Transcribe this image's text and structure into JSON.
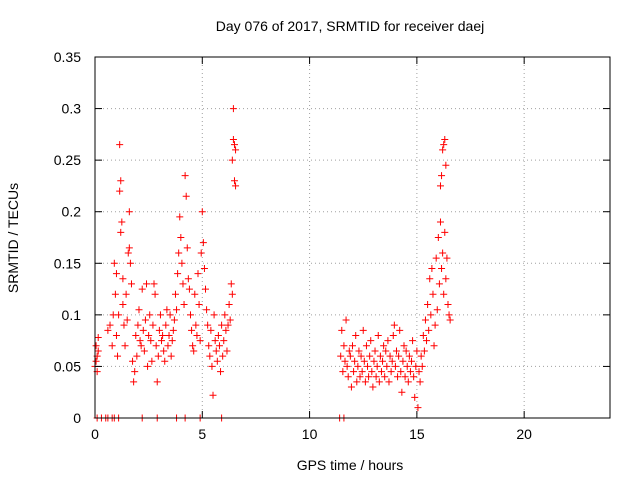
{
  "chart_data": {
    "type": "scatter",
    "title": "Day 076 of 2017, SRMTID for receiver daej",
    "xlabel": "GPS time / hours",
    "ylabel": "SRMTID / TECUs",
    "xlim": [
      0,
      24
    ],
    "ylim": [
      0,
      0.35
    ],
    "xticks": [
      0,
      5,
      10,
      15,
      20
    ],
    "xtick_labels": [
      "0",
      "5",
      "10",
      "15",
      "20"
    ],
    "yticks": [
      0,
      0.05,
      0.1,
      0.15,
      0.2,
      0.25,
      0.3,
      0.35
    ],
    "ytick_labels": [
      "0",
      "0.05",
      "0.1",
      "0.15",
      "0.2",
      "0.25",
      "0.3",
      "0.35"
    ],
    "grid": true,
    "marker": "+",
    "color": "#ff0000",
    "series": [
      {
        "name": "SRMTID",
        "points": [
          [
            0.0,
            0.05
          ],
          [
            0.05,
            0.07
          ],
          [
            0.1,
            0.045
          ],
          [
            0.1,
            0.06
          ],
          [
            0.15,
            0.065
          ],
          [
            0.05,
            0.055
          ],
          [
            0.15,
            0.078
          ],
          [
            0.6,
            0.085
          ],
          [
            0.7,
            0.09
          ],
          [
            0.8,
            0.07
          ],
          [
            0.85,
            0.1
          ],
          [
            0.9,
            0.15
          ],
          [
            0.95,
            0.12
          ],
          [
            1.0,
            0.08
          ],
          [
            1.0,
            0.14
          ],
          [
            1.05,
            0.06
          ],
          [
            1.1,
            0.1
          ],
          [
            1.15,
            0.265
          ],
          [
            1.15,
            0.22
          ],
          [
            1.2,
            0.23
          ],
          [
            1.2,
            0.18
          ],
          [
            1.25,
            0.19
          ],
          [
            1.3,
            0.135
          ],
          [
            1.3,
            0.11
          ],
          [
            1.35,
            0.09
          ],
          [
            1.4,
            0.07
          ],
          [
            1.45,
            0.12
          ],
          [
            1.5,
            0.095
          ],
          [
            1.55,
            0.16
          ],
          [
            1.6,
            0.2
          ],
          [
            1.6,
            0.165
          ],
          [
            1.65,
            0.15
          ],
          [
            1.7,
            0.13
          ],
          [
            1.75,
            0.055
          ],
          [
            1.8,
            0.035
          ],
          [
            1.85,
            0.045
          ],
          [
            1.9,
            0.08
          ],
          [
            1.95,
            0.06
          ],
          [
            2.0,
            0.09
          ],
          [
            2.05,
            0.105
          ],
          [
            2.1,
            0.075
          ],
          [
            2.15,
            0.07
          ],
          [
            2.2,
            0.125
          ],
          [
            2.25,
            0.085
          ],
          [
            2.3,
            0.065
          ],
          [
            2.35,
            0.095
          ],
          [
            2.4,
            0.13
          ],
          [
            2.45,
            0.05
          ],
          [
            2.5,
            0.08
          ],
          [
            2.55,
            0.1
          ],
          [
            2.6,
            0.075
          ],
          [
            2.65,
            0.055
          ],
          [
            2.7,
            0.09
          ],
          [
            2.75,
            0.13
          ],
          [
            2.8,
            0.12
          ],
          [
            2.85,
            0.07
          ],
          [
            2.9,
            0.035
          ],
          [
            2.95,
            0.06
          ],
          [
            3.0,
            0.085
          ],
          [
            3.05,
            0.1
          ],
          [
            3.1,
            0.075
          ],
          [
            3.15,
            0.08
          ],
          [
            3.2,
            0.065
          ],
          [
            3.25,
            0.055
          ],
          [
            3.3,
            0.09
          ],
          [
            3.35,
            0.105
          ],
          [
            3.4,
            0.07
          ],
          [
            3.45,
            0.08
          ],
          [
            3.5,
            0.1
          ],
          [
            3.55,
            0.06
          ],
          [
            3.6,
            0.075
          ],
          [
            3.65,
            0.085
          ],
          [
            3.7,
            0.095
          ],
          [
            3.75,
            0.12
          ],
          [
            3.8,
            0.105
          ],
          [
            3.85,
            0.14
          ],
          [
            3.9,
            0.16
          ],
          [
            3.95,
            0.195
          ],
          [
            4.0,
            0.175
          ],
          [
            4.05,
            0.15
          ],
          [
            4.1,
            0.13
          ],
          [
            4.15,
            0.11
          ],
          [
            4.2,
            0.235
          ],
          [
            4.25,
            0.215
          ],
          [
            4.3,
            0.165
          ],
          [
            4.35,
            0.135
          ],
          [
            4.4,
            0.125
          ],
          [
            4.45,
            0.1
          ],
          [
            4.5,
            0.085
          ],
          [
            4.55,
            0.07
          ],
          [
            4.6,
            0.065
          ],
          [
            4.65,
            0.12
          ],
          [
            4.7,
            0.09
          ],
          [
            4.75,
            0.08
          ],
          [
            4.8,
            0.14
          ],
          [
            4.85,
            0.11
          ],
          [
            4.9,
            0.075
          ],
          [
            4.95,
            0.16
          ],
          [
            5.0,
            0.2
          ],
          [
            5.05,
            0.17
          ],
          [
            5.1,
            0.145
          ],
          [
            5.15,
            0.125
          ],
          [
            5.2,
            0.105
          ],
          [
            5.25,
            0.09
          ],
          [
            5.3,
            0.07
          ],
          [
            5.35,
            0.06
          ],
          [
            5.4,
            0.085
          ],
          [
            5.45,
            0.05
          ],
          [
            5.5,
            0.022
          ],
          [
            5.55,
            0.1
          ],
          [
            5.6,
            0.075
          ],
          [
            5.65,
            0.065
          ],
          [
            5.7,
            0.055
          ],
          [
            5.75,
            0.08
          ],
          [
            5.8,
            0.07
          ],
          [
            5.85,
            0.045
          ],
          [
            5.9,
            0.09
          ],
          [
            5.95,
            0.06
          ],
          [
            6.0,
            0.075
          ],
          [
            6.05,
            0.1
          ],
          [
            6.1,
            0.085
          ],
          [
            6.15,
            0.065
          ],
          [
            6.2,
            0.09
          ],
          [
            6.25,
            0.11
          ],
          [
            6.3,
            0.095
          ],
          [
            6.35,
            0.13
          ],
          [
            6.4,
            0.12
          ],
          [
            6.4,
            0.25
          ],
          [
            6.45,
            0.3
          ],
          [
            6.45,
            0.27
          ],
          [
            6.5,
            0.265
          ],
          [
            6.5,
            0.23
          ],
          [
            6.55,
            0.225
          ],
          [
            6.55,
            0.26
          ],
          [
            11.45,
            0.06
          ],
          [
            11.5,
            0.085
          ],
          [
            11.55,
            0.045
          ],
          [
            11.6,
            0.07
          ],
          [
            11.65,
            0.055
          ],
          [
            11.7,
            0.095
          ],
          [
            11.75,
            0.05
          ],
          [
            11.8,
            0.04
          ],
          [
            11.85,
            0.065
          ],
          [
            11.9,
            0.06
          ],
          [
            11.95,
            0.03
          ],
          [
            12.0,
            0.07
          ],
          [
            12.05,
            0.045
          ],
          [
            12.1,
            0.055
          ],
          [
            12.15,
            0.08
          ],
          [
            12.2,
            0.035
          ],
          [
            12.25,
            0.05
          ],
          [
            12.3,
            0.065
          ],
          [
            12.35,
            0.04
          ],
          [
            12.4,
            0.06
          ],
          [
            12.45,
            0.045
          ],
          [
            12.5,
            0.085
          ],
          [
            12.55,
            0.055
          ],
          [
            12.6,
            0.035
          ],
          [
            12.65,
            0.07
          ],
          [
            12.7,
            0.05
          ],
          [
            12.75,
            0.04
          ],
          [
            12.8,
            0.06
          ],
          [
            12.85,
            0.075
          ],
          [
            12.9,
            0.045
          ],
          [
            12.95,
            0.03
          ],
          [
            13.0,
            0.055
          ],
          [
            13.05,
            0.065
          ],
          [
            13.1,
            0.04
          ],
          [
            13.15,
            0.05
          ],
          [
            13.2,
            0.08
          ],
          [
            13.25,
            0.035
          ],
          [
            13.3,
            0.06
          ],
          [
            13.35,
            0.045
          ],
          [
            13.4,
            0.055
          ],
          [
            13.45,
            0.07
          ],
          [
            13.5,
            0.04
          ],
          [
            13.55,
            0.065
          ],
          [
            13.6,
            0.05
          ],
          [
            13.65,
            0.075
          ],
          [
            13.7,
            0.035
          ],
          [
            13.75,
            0.06
          ],
          [
            13.8,
            0.045
          ],
          [
            13.85,
            0.055
          ],
          [
            13.9,
            0.08
          ],
          [
            13.95,
            0.09
          ],
          [
            14.0,
            0.05
          ],
          [
            14.05,
            0.065
          ],
          [
            14.1,
            0.04
          ],
          [
            14.15,
            0.06
          ],
          [
            14.2,
            0.085
          ],
          [
            14.25,
            0.045
          ],
          [
            14.3,
            0.025
          ],
          [
            14.35,
            0.055
          ],
          [
            14.4,
            0.07
          ],
          [
            14.45,
            0.04
          ],
          [
            14.5,
            0.065
          ],
          [
            14.55,
            0.05
          ],
          [
            14.6,
            0.035
          ],
          [
            14.65,
            0.06
          ],
          [
            14.7,
            0.045
          ],
          [
            14.75,
            0.055
          ],
          [
            14.8,
            0.075
          ],
          [
            14.85,
            0.04
          ],
          [
            14.9,
            0.02
          ],
          [
            14.95,
            0.05
          ],
          [
            15.0,
            0.065
          ],
          [
            15.05,
            0.01
          ],
          [
            15.1,
            0.045
          ],
          [
            15.15,
            0.035
          ],
          [
            15.2,
            0.06
          ],
          [
            15.25,
            0.05
          ],
          [
            15.3,
            0.08
          ],
          [
            15.35,
            0.065
          ],
          [
            15.4,
            0.095
          ],
          [
            15.45,
            0.075
          ],
          [
            15.5,
            0.11
          ],
          [
            15.55,
            0.085
          ],
          [
            15.6,
            0.135
          ],
          [
            15.65,
            0.1
          ],
          [
            15.7,
            0.145
          ],
          [
            15.75,
            0.12
          ],
          [
            15.8,
            0.07
          ],
          [
            15.85,
            0.09
          ],
          [
            15.9,
            0.155
          ],
          [
            15.95,
            0.105
          ],
          [
            16.0,
            0.175
          ],
          [
            16.05,
            0.13
          ],
          [
            16.1,
            0.19
          ],
          [
            16.15,
            0.145
          ],
          [
            16.2,
            0.16
          ],
          [
            16.25,
            0.12
          ],
          [
            16.3,
            0.18
          ],
          [
            16.35,
            0.135
          ],
          [
            16.4,
            0.155
          ],
          [
            16.45,
            0.11
          ],
          [
            16.5,
            0.1
          ],
          [
            16.55,
            0.095
          ],
          [
            16.1,
            0.225
          ],
          [
            16.15,
            0.235
          ],
          [
            16.2,
            0.26
          ],
          [
            16.25,
            0.265
          ],
          [
            16.3,
            0.27
          ],
          [
            16.35,
            0.245
          ],
          [
            0.1,
            0
          ],
          [
            0.3,
            0
          ],
          [
            0.5,
            0
          ],
          [
            0.6,
            0
          ],
          [
            0.8,
            0
          ],
          [
            0.9,
            0
          ],
          [
            1.1,
            0
          ],
          [
            2.2,
            0
          ],
          [
            2.9,
            0
          ],
          [
            3.8,
            0
          ],
          [
            4.2,
            0
          ],
          [
            4.9,
            0
          ],
          [
            5.9,
            0
          ],
          [
            11.4,
            0
          ],
          [
            11.6,
            0
          ]
        ]
      }
    ]
  }
}
